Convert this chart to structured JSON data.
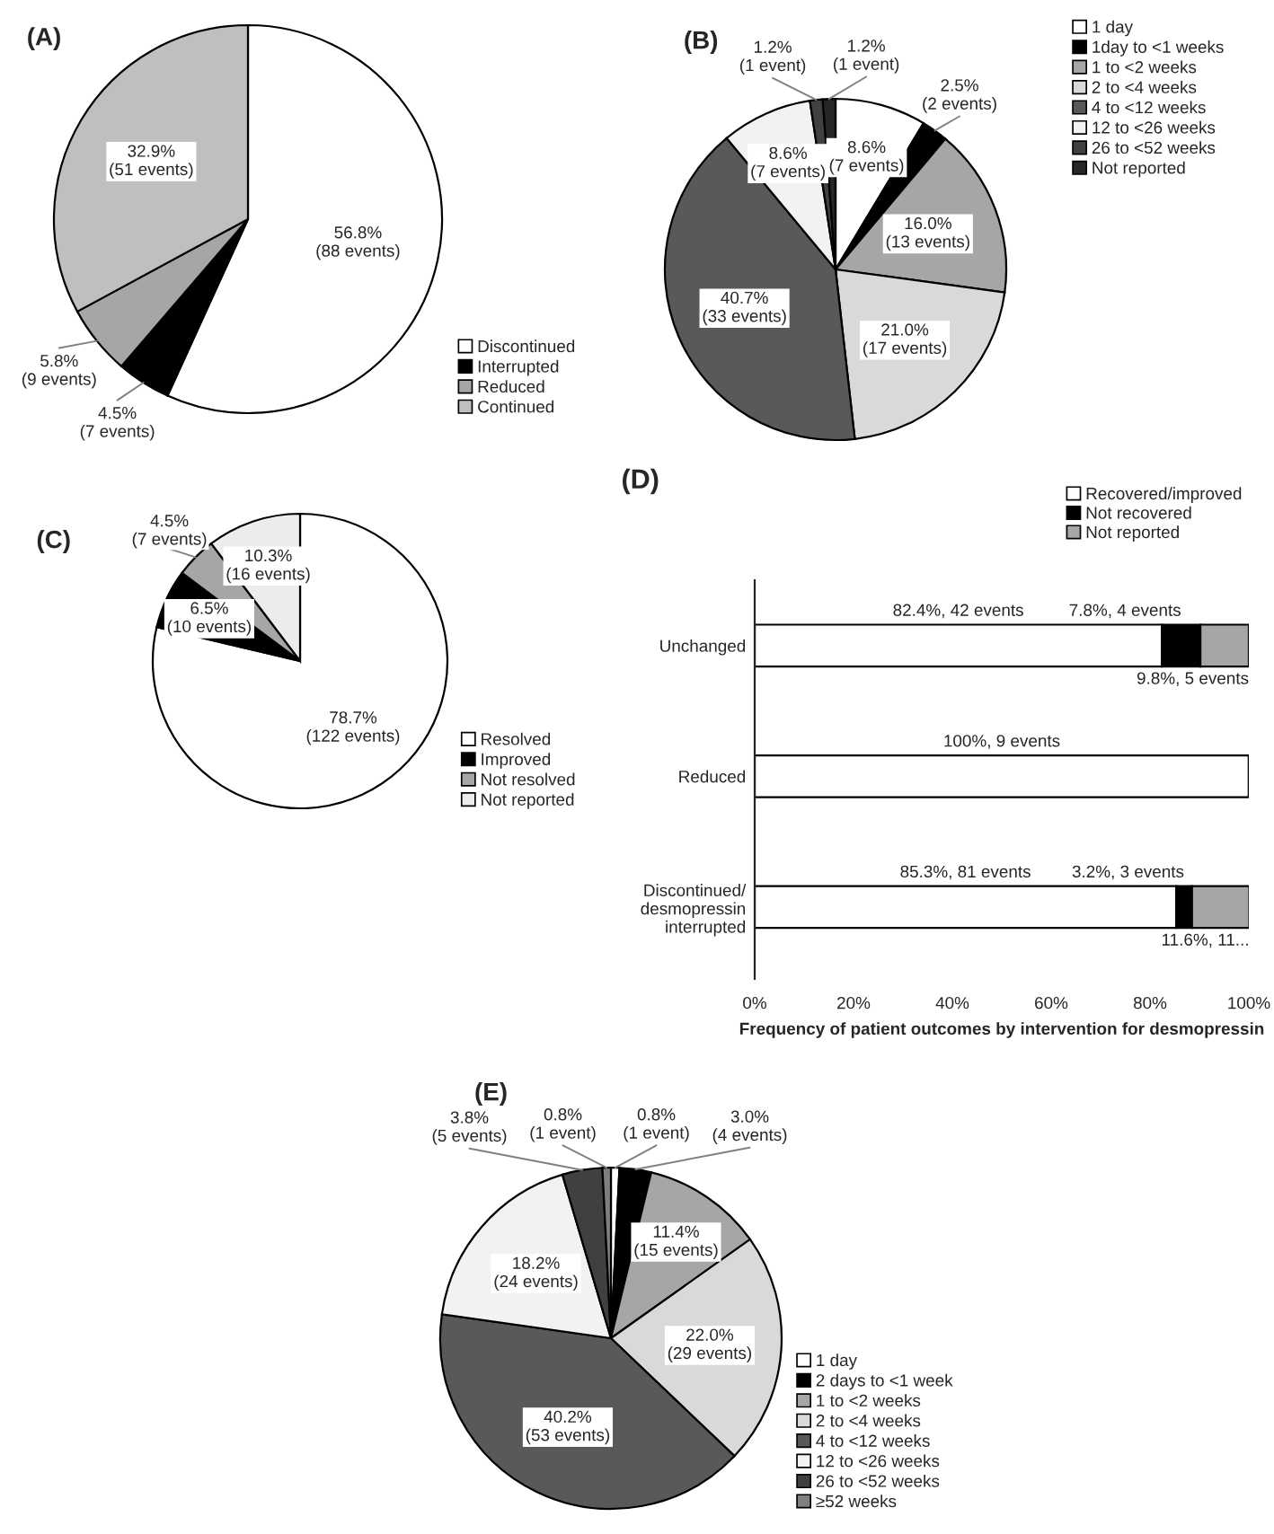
{
  "chart_data": [
    {
      "type": "pie",
      "title": "(A)",
      "categories": [
        "Discontinued",
        "Interrupted",
        "Reduced",
        "Continued"
      ],
      "values": [
        56.8,
        4.5,
        5.8,
        32.9
      ],
      "colors": [
        "#ffffff",
        "#000000",
        "#a6a6a6",
        "#bfbfbf"
      ],
      "value_labels": [
        "56.8%\n(88 events)",
        "4.5%\n(7 events)",
        "5.8%\n(9 events)",
        "32.9%\n(51 events)"
      ],
      "legend": "bottom right"
    },
    {
      "type": "pie",
      "title": "(B)",
      "categories": [
        "1 day",
        "1day to <1 weeks",
        "1 to <2 weeks",
        "2 to <4 weeks",
        "4 to <12 weeks",
        "12 to <26 weeks",
        "26 to <52 weeks",
        "Not reported"
      ],
      "values": [
        8.6,
        2.5,
        16.0,
        21.0,
        40.7,
        8.6,
        1.2,
        1.2
      ],
      "colors": [
        "#ffffff",
        "#000000",
        "#a6a6a6",
        "#d9d9d9",
        "#595959",
        "#f2f2f2",
        "#404040",
        "#262626"
      ],
      "value_labels": [
        "8.6%\n(7 events)",
        "2.5%\n(2 events)",
        "16.0%\n(13 events)",
        "21.0%\n(17 events)",
        "40.7%\n(33 events)",
        "8.6%\n(7 events)",
        "1.2%\n(1 event)",
        "1.2%\n(1 event)"
      ],
      "legend": "top right"
    },
    {
      "type": "pie",
      "title": "(C)",
      "categories": [
        "Resolved",
        "Improved",
        "Not resolved",
        "Not reported"
      ],
      "values": [
        78.7,
        6.5,
        4.5,
        10.3
      ],
      "colors": [
        "#ffffff",
        "#000000",
        "#a6a6a6",
        "#ececec"
      ],
      "value_labels": [
        "78.7%\n(122 events)",
        "6.5%\n(10 events)",
        "4.5%\n(7 events)",
        "10.3%\n(16 events)"
      ],
      "legend": "bottom right"
    },
    {
      "type": "bar",
      "title": "(D)",
      "orientation": "horizontal",
      "stacked": true,
      "categories": [
        "Unchanged",
        "Reduced",
        "Discontinued/desmopressin interrupted"
      ],
      "series": [
        {
          "name": "Recovered/improved",
          "color": "#ffffff",
          "values": [
            82.4,
            100,
            85.3
          ],
          "value_labels": [
            "82.4%, 42 events",
            "100%, 9 events",
            "85.3%, 81 events"
          ]
        },
        {
          "name": "Not recovered",
          "color": "#000000",
          "values": [
            7.8,
            0,
            3.2
          ],
          "value_labels": [
            "7.8%, 4 events",
            null,
            "3.2%, 3 events"
          ]
        },
        {
          "name": "Not reported",
          "color": "#a6a6a6",
          "values": [
            9.8,
            0,
            11.6
          ],
          "value_labels": [
            "9.8%, 5 events",
            null,
            "11.6%, 11..."
          ]
        }
      ],
      "xlim": [
        0,
        100
      ],
      "xticks": [
        {
          "value": 0,
          "label": "0%"
        },
        {
          "value": 20,
          "label": "20%"
        },
        {
          "value": 40,
          "label": "40%"
        },
        {
          "value": 60,
          "label": "60%"
        },
        {
          "value": 80,
          "label": "80%"
        },
        {
          "value": 100,
          "label": "100%"
        }
      ],
      "xlabel": "Frequency of patient outcomes by intervention for desmopressin",
      "legend": "top right"
    },
    {
      "type": "pie",
      "title": "(E)",
      "categories": [
        "1 day",
        "2 days to <1 week",
        "1 to <2 weeks",
        "2 to <4 weeks",
        "4 to <12 weeks",
        "12 to <26 weeks",
        "26 to <52 weeks",
        "≥52 weeks"
      ],
      "values": [
        0.8,
        3.0,
        11.4,
        22.0,
        40.2,
        18.2,
        3.8,
        0.8
      ],
      "colors": [
        "#ffffff",
        "#000000",
        "#a6a6a6",
        "#d9d9d9",
        "#595959",
        "#f2f2f2",
        "#404040",
        "#7f7f7f"
      ],
      "value_labels": [
        "0.8%\n(1 event)",
        "3.0%\n(4 events)",
        "11.4%\n(15 events)",
        "22.0%\n(29 events)",
        "40.2%\n(53 events)",
        "18.2%\n(24 events)",
        "3.8%\n(5 events)",
        "0.8%\n(1 event)"
      ],
      "legend": "bottom right"
    }
  ]
}
